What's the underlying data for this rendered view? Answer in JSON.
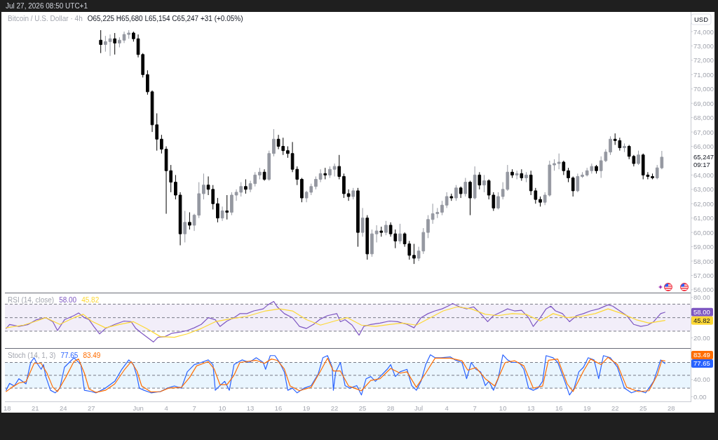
{
  "chart_data": [
    {
      "type": "candlestick",
      "title": "Bitcoin / U.S. Dollar · 4h",
      "subtitle": "O65,225 H65,680 L65,154 C65,247 +31 (+0.05%)",
      "ylabel": "USD",
      "x": [
        "2026-05-28T00:00",
        "2026-05-28T12:00",
        "2026-05-29T00:00",
        "2026-05-29T12:00",
        "2026-05-30T00:00",
        "2026-05-30T12:00",
        "2026-05-31T00:00",
        "2026-05-31T12:00",
        "2026-06-01T00:00",
        "2026-06-01T12:00",
        "2026-06-02T00:00",
        "2026-06-02T12:00",
        "2026-06-03T00:00",
        "2026-06-03T12:00",
        "2026-06-04T00:00",
        "2026-06-04T12:00",
        "2026-06-05T00:00",
        "2026-06-05T12:00",
        "2026-06-06T00:00",
        "2026-06-06T12:00",
        "2026-06-07T00:00",
        "2026-06-07T12:00",
        "2026-06-08T00:00",
        "2026-06-08T12:00",
        "2026-06-09T00:00",
        "2026-06-09T12:00",
        "2026-06-10T00:00",
        "2026-06-10T12:00",
        "2026-06-11T00:00",
        "2026-06-11T12:00",
        "2026-06-12T00:00",
        "2026-06-12T12:00",
        "2026-06-13T00:00",
        "2026-06-13T12:00",
        "2026-06-14T00:00",
        "2026-06-14T12:00",
        "2026-06-15T00:00",
        "2026-06-15T12:00",
        "2026-06-16T00:00",
        "2026-06-16T12:00",
        "2026-06-17T00:00",
        "2026-06-17T12:00",
        "2026-06-18T00:00",
        "2026-06-18T12:00",
        "2026-06-19T00:00",
        "2026-06-19T12:00",
        "2026-06-20T00:00",
        "2026-06-20T12:00",
        "2026-06-21T00:00",
        "2026-06-21T12:00",
        "2026-06-22T00:00",
        "2026-06-22T12:00",
        "2026-06-23T00:00",
        "2026-06-23T12:00",
        "2026-06-24T00:00",
        "2026-06-24T12:00",
        "2026-06-25T00:00",
        "2026-06-25T12:00",
        "2026-06-26T00:00",
        "2026-06-26T12:00",
        "2026-06-27T00:00",
        "2026-06-27T12:00",
        "2026-06-28T00:00",
        "2026-06-28T12:00",
        "2026-06-29T00:00",
        "2026-06-29T12:00",
        "2026-06-30T00:00",
        "2026-06-30T12:00",
        "2026-07-01T00:00",
        "2026-07-01T12:00",
        "2026-07-02T00:00",
        "2026-07-02T12:00",
        "2026-07-03T00:00",
        "2026-07-03T12:00",
        "2026-07-04T00:00",
        "2026-07-04T12:00",
        "2026-07-05T00:00",
        "2026-07-05T12:00",
        "2026-07-06T00:00",
        "2026-07-06T12:00",
        "2026-07-07T00:00",
        "2026-07-07T12:00",
        "2026-07-08T00:00",
        "2026-07-08T12:00",
        "2026-07-09T00:00",
        "2026-07-09T12:00",
        "2026-07-10T00:00",
        "2026-07-10T12:00",
        "2026-07-11T00:00",
        "2026-07-11T12:00",
        "2026-07-12T00:00",
        "2026-07-12T12:00",
        "2026-07-13T00:00",
        "2026-07-13T12:00",
        "2026-07-14T00:00",
        "2026-07-14T12:00",
        "2026-07-15T00:00",
        "2026-07-15T12:00",
        "2026-07-16T00:00",
        "2026-07-16T12:00",
        "2026-07-17T00:00",
        "2026-07-17T12:00",
        "2026-07-18T00:00",
        "2026-07-18T12:00",
        "2026-07-19T00:00",
        "2026-07-19T12:00",
        "2026-07-20T00:00",
        "2026-07-20T12:00",
        "2026-07-21T00:00",
        "2026-07-21T12:00",
        "2026-07-22T00:00",
        "2026-07-22T12:00",
        "2026-07-23T00:00",
        "2026-07-23T12:00",
        "2026-07-24T00:00",
        "2026-07-24T12:00",
        "2026-07-25T00:00",
        "2026-07-25T12:00",
        "2026-07-26T00:00",
        "2026-07-26T12:00",
        "2026-07-27T00:00"
      ],
      "ohlc": [
        [
          73400,
          74100,
          72500,
          73100
        ],
        [
          73100,
          73700,
          72600,
          73300
        ],
        [
          73300,
          73800,
          72300,
          73500
        ],
        [
          73500,
          73900,
          72400,
          73200
        ],
        [
          73200,
          73600,
          72900,
          73400
        ],
        [
          73400,
          74000,
          73200,
          73800
        ],
        [
          73800,
          74100,
          73500,
          73900
        ],
        [
          73900,
          74000,
          73300,
          73500
        ],
        [
          73500,
          73800,
          72200,
          72400
        ],
        [
          72400,
          72500,
          70800,
          71000
        ],
        [
          71000,
          71300,
          69600,
          69800
        ],
        [
          69800,
          69900,
          67000,
          67500
        ],
        [
          67500,
          68300,
          65700,
          66500
        ],
        [
          66500,
          66800,
          65500,
          65800
        ],
        [
          65800,
          66000,
          61300,
          64300
        ],
        [
          64300,
          64700,
          62800,
          63500
        ],
        [
          63500,
          64000,
          62300,
          62600
        ],
        [
          62600,
          62800,
          59100,
          59900
        ],
        [
          59900,
          61500,
          59300,
          60700
        ],
        [
          60700,
          61400,
          60200,
          60500
        ],
        [
          60500,
          61300,
          60100,
          61200
        ],
        [
          61200,
          63500,
          61000,
          62700
        ],
        [
          62700,
          64100,
          62300,
          63300
        ],
        [
          63300,
          63900,
          62600,
          63000
        ],
        [
          63000,
          63300,
          61600,
          62000
        ],
        [
          62000,
          62400,
          60700,
          61000
        ],
        [
          61000,
          61800,
          60800,
          61500
        ],
        [
          61500,
          62600,
          60900,
          61400
        ],
        [
          61400,
          62800,
          61200,
          62600
        ],
        [
          62600,
          63000,
          62200,
          62800
        ],
        [
          62800,
          63500,
          62500,
          63200
        ],
        [
          63200,
          63700,
          62700,
          63000
        ],
        [
          63000,
          63600,
          62800,
          63400
        ],
        [
          63400,
          64200,
          63200,
          64000
        ],
        [
          64000,
          64500,
          63700,
          64200
        ],
        [
          64200,
          64400,
          63600,
          63700
        ],
        [
          63700,
          65700,
          63600,
          65500
        ],
        [
          65500,
          67200,
          65300,
          66500
        ],
        [
          66500,
          66800,
          65800,
          66000
        ],
        [
          66000,
          66600,
          65400,
          65700
        ],
        [
          65700,
          66000,
          65200,
          65500
        ],
        [
          65500,
          66300,
          64200,
          64400
        ],
        [
          64400,
          64600,
          63300,
          63700
        ],
        [
          63700,
          63800,
          62100,
          62400
        ],
        [
          62400,
          62900,
          62100,
          62800
        ],
        [
          62800,
          63400,
          62600,
          63200
        ],
        [
          63200,
          63900,
          63000,
          63700
        ],
        [
          63700,
          64400,
          63500,
          64100
        ],
        [
          64100,
          64500,
          63700,
          64000
        ],
        [
          64000,
          64600,
          63800,
          64400
        ],
        [
          64400,
          64800,
          63900,
          64600
        ],
        [
          64600,
          65400,
          63700,
          63900
        ],
        [
          63900,
          64100,
          62400,
          62700
        ],
        [
          62700,
          63000,
          62200,
          62500
        ],
        [
          62500,
          63100,
          62300,
          62900
        ],
        [
          62900,
          63100,
          59000,
          60000
        ],
        [
          60000,
          61700,
          59700,
          61000
        ],
        [
          61000,
          61200,
          58100,
          58500
        ],
        [
          58500,
          60200,
          58300,
          59900
        ],
        [
          59900,
          60500,
          59300,
          60100
        ],
        [
          60100,
          60400,
          59700,
          60000
        ],
        [
          60000,
          60800,
          59800,
          60500
        ],
        [
          60500,
          60700,
          59700,
          59900
        ],
        [
          59900,
          60200,
          58900,
          59400
        ],
        [
          59400,
          60600,
          59200,
          59900
        ],
        [
          59900,
          60000,
          59000,
          59200
        ],
        [
          59200,
          59400,
          58100,
          58400
        ],
        [
          58400,
          59200,
          57800,
          58200
        ],
        [
          58200,
          59000,
          58000,
          58700
        ],
        [
          58700,
          60300,
          58500,
          60000
        ],
        [
          60000,
          61200,
          59600,
          60900
        ],
        [
          60900,
          62000,
          60600,
          61300
        ],
        [
          61300,
          61700,
          61000,
          61400
        ],
        [
          61400,
          62200,
          61200,
          61900
        ],
        [
          61900,
          62800,
          61700,
          62500
        ],
        [
          62500,
          62700,
          62200,
          62400
        ],
        [
          62400,
          63300,
          62200,
          63100
        ],
        [
          63100,
          63200,
          62400,
          62700
        ],
        [
          62700,
          63800,
          62500,
          63500
        ],
        [
          63500,
          63600,
          61200,
          62400
        ],
        [
          62400,
          64600,
          62300,
          64000
        ],
        [
          64000,
          64200,
          63000,
          63300
        ],
        [
          63300,
          64000,
          62800,
          63600
        ],
        [
          63600,
          63700,
          62300,
          62600
        ],
        [
          62600,
          62800,
          61500,
          61700
        ],
        [
          61700,
          62800,
          61600,
          62500
        ],
        [
          62500,
          63500,
          62300,
          63000
        ],
        [
          63000,
          64700,
          62900,
          64200
        ],
        [
          64200,
          64400,
          63800,
          64000
        ],
        [
          64000,
          64300,
          63700,
          64100
        ],
        [
          64100,
          64400,
          63600,
          63800
        ],
        [
          63800,
          64200,
          63500,
          64000
        ],
        [
          64000,
          64300,
          62600,
          62900
        ],
        [
          62900,
          63100,
          62000,
          62300
        ],
        [
          62300,
          62500,
          61800,
          62100
        ],
        [
          62100,
          62800,
          61900,
          62600
        ],
        [
          62600,
          65000,
          62500,
          64700
        ],
        [
          64700,
          65100,
          64300,
          64800
        ],
        [
          64800,
          65500,
          64400,
          64900
        ],
        [
          64900,
          65000,
          64000,
          64300
        ],
        [
          64300,
          64500,
          63500,
          63800
        ],
        [
          63800,
          63900,
          62500,
          62900
        ],
        [
          62900,
          64100,
          62800,
          63900
        ],
        [
          63900,
          64200,
          63800,
          64000
        ],
        [
          64000,
          64500,
          63900,
          64300
        ],
        [
          64300,
          64800,
          64100,
          64600
        ],
        [
          64600,
          64700,
          64100,
          64300
        ],
        [
          64300,
          65300,
          63800,
          65000
        ],
        [
          65000,
          65800,
          64900,
          65600
        ],
        [
          65600,
          66700,
          65400,
          66500
        ],
        [
          66500,
          66900,
          66100,
          66400
        ],
        [
          66400,
          66600,
          65700,
          65900
        ],
        [
          65900,
          66200,
          65600,
          66000
        ],
        [
          66000,
          66100,
          65100,
          65300
        ],
        [
          65300,
          65400,
          64600,
          64800
        ],
        [
          64800,
          65700,
          64700,
          65400
        ],
        [
          65400,
          65500,
          63700,
          64000
        ],
        [
          64000,
          64200,
          63700,
          63900
        ],
        [
          63900,
          64100,
          63700,
          63800
        ],
        [
          63800,
          64700,
          63700,
          64500
        ],
        [
          64500,
          65680,
          64400,
          65247
        ]
      ],
      "colors": [
        "#000000",
        "#9598a1",
        "#9598a1",
        "#000000",
        "#9598a1",
        "#9598a1",
        "#9598a1",
        "#000000",
        "#000000",
        "#000000",
        "#000000",
        "#000000",
        "#000000",
        "#000000",
        "#000000",
        "#000000",
        "#000000",
        "#000000",
        "#9598a1",
        "#000000",
        "#9598a1",
        "#9598a1",
        "#9598a1",
        "#000000",
        "#000000",
        "#000000",
        "#9598a1",
        "#000000",
        "#9598a1",
        "#9598a1",
        "#9598a1",
        "#000000",
        "#9598a1",
        "#9598a1",
        "#9598a1",
        "#000000",
        "#9598a1",
        "#9598a1",
        "#000000",
        "#000000",
        "#000000",
        "#000000",
        "#000000",
        "#000000",
        "#9598a1",
        "#9598a1",
        "#9598a1",
        "#9598a1",
        "#000000",
        "#9598a1",
        "#9598a1",
        "#000000",
        "#000000",
        "#000000",
        "#9598a1",
        "#000000",
        "#9598a1",
        "#000000",
        "#9598a1",
        "#9598a1",
        "#000000",
        "#9598a1",
        "#000000",
        "#000000",
        "#9598a1",
        "#000000",
        "#000000",
        "#000000",
        "#9598a1",
        "#9598a1",
        "#9598a1",
        "#9598a1",
        "#9598a1",
        "#9598a1",
        "#9598a1",
        "#000000",
        "#9598a1",
        "#000000",
        "#9598a1",
        "#000000",
        "#9598a1",
        "#000000",
        "#9598a1",
        "#000000",
        "#000000",
        "#9598a1",
        "#9598a1",
        "#9598a1",
        "#000000",
        "#9598a1",
        "#000000",
        "#9598a1",
        "#000000",
        "#000000",
        "#000000",
        "#9598a1",
        "#9598a1",
        "#9598a1",
        "#9598a1",
        "#000000",
        "#000000",
        "#000000",
        "#9598a1",
        "#9598a1",
        "#9598a1",
        "#9598a1",
        "#000000",
        "#9598a1",
        "#9598a1",
        "#9598a1",
        "#000000",
        "#000000",
        "#9598a1",
        "#000000",
        "#000000",
        "#9598a1",
        "#000000",
        "#000000",
        "#000000",
        "#9598a1",
        "#9598a1"
      ],
      "xlim": [
        "2026-05-17T18:00",
        "2026-07-30T02:00"
      ],
      "ylim": [
        55800,
        75370
      ],
      "yticks": [
        {
          "value": 56000,
          "label": "56,000"
        },
        {
          "value": 57000,
          "label": "57,000"
        },
        {
          "value": 58000,
          "label": "58,000"
        },
        {
          "value": 59000,
          "label": "59,000"
        },
        {
          "value": 60000,
          "label": "60,000"
        },
        {
          "value": 61000,
          "label": "61,000"
        },
        {
          "value": 62000,
          "label": "62,000"
        },
        {
          "value": 63000,
          "label": "63,000"
        },
        {
          "value": 64000,
          "label": "64,000"
        },
        {
          "value": 66000,
          "label": "66,000"
        },
        {
          "value": 67000,
          "label": "67,000"
        },
        {
          "value": 68000,
          "label": "68,000"
        },
        {
          "value": 69000,
          "label": "69,000"
        },
        {
          "value": 70000,
          "label": "70,000"
        },
        {
          "value": 71000,
          "label": "71,000"
        },
        {
          "value": 72000,
          "label": "72,000"
        },
        {
          "value": 73000,
          "label": "73,000"
        },
        {
          "value": 74000,
          "label": "74,000"
        }
      ],
      "tick_labels": "y",
      "annotations": [
        "Jul 27, 2026 08:50 UTC+1",
        "65,247",
        "09:17"
      ]
    },
    {
      "type": "line",
      "title": "RSI (14, close)",
      "xlim": [
        "2026-05-17T18:00",
        "2026-07-30T02:00"
      ],
      "ylim": [
        5,
        86
      ],
      "yticks": [
        {
          "value": 80,
          "label": "80.00"
        },
        {
          "value": 20,
          "label": "20.00"
        }
      ],
      "tick_labels": "y",
      "ref_lines": [
        {
          "axis": "y",
          "value": 70,
          "color": "#787b86",
          "line_style": "dashed"
        },
        {
          "axis": "y",
          "value": 50,
          "color": "#787b86",
          "line_style": "dashed"
        },
        {
          "axis": "y",
          "value": 30,
          "color": "#787b86",
          "line_style": "dashed"
        }
      ],
      "bands": [
        {
          "axis": "y",
          "from": 30,
          "to": 70,
          "color": "#f2eef9"
        }
      ],
      "annotations": [
        "58.00",
        "45.82"
      ],
      "series": [
        {
          "color": "#7e57c2",
          "x": [
            "2026-05-17T21:00",
            "2026-05-18T06:00",
            "2026-05-19T06:00",
            "2026-05-20T06:00",
            "2026-05-21T03:00",
            "2026-05-22T03:00",
            "2026-05-22T21:00",
            "2026-05-23T09:00",
            "2026-05-24T03:00",
            "2026-05-25T03:00",
            "2026-05-25T15:00",
            "2026-05-26T06:00",
            "2026-05-26T18:00",
            "2026-05-27T06:00",
            "2026-05-27T21:00",
            "2026-05-28T12:00",
            "2026-05-29T12:00",
            "2026-05-30T12:00",
            "2026-05-31T06:00",
            "2026-05-31T18:00",
            "2026-06-01T09:00",
            "2026-06-02T15:00",
            "2026-06-03T03:00",
            "2026-06-03T21:00",
            "2026-06-04T15:00",
            "2026-06-05T15:00",
            "2026-06-06T06:00",
            "2026-06-07T00:00",
            "2026-06-07T18:00",
            "2026-06-08T12:00",
            "2026-06-09T06:00",
            "2026-06-09T18:00",
            "2026-06-10T12:00",
            "2026-06-11T06:00",
            "2026-06-11T21:00",
            "2026-06-12T15:00",
            "2026-06-13T09:00",
            "2026-06-14T09:00",
            "2026-06-14T21:00",
            "2026-06-15T12:00",
            "2026-06-15T21:00",
            "2026-06-16T15:00",
            "2026-06-17T12:00",
            "2026-06-18T06:00",
            "2026-06-19T00:00",
            "2026-06-19T18:00",
            "2026-06-20T12:00",
            "2026-06-21T06:00",
            "2026-06-22T06:00",
            "2026-06-22T15:00",
            "2026-06-23T03:00",
            "2026-06-23T21:00",
            "2026-06-24T15:00",
            "2026-06-25T03:00",
            "2026-06-25T21:00",
            "2026-06-26T21:00",
            "2026-06-27T21:00",
            "2026-06-28T18:00",
            "2026-06-29T18:00",
            "2026-06-30T12:00",
            "2026-07-01T06:00",
            "2026-07-02T00:00",
            "2026-07-02T18:00",
            "2026-07-03T12:00",
            "2026-07-04T03:00",
            "2026-07-04T15:00",
            "2026-07-05T09:00",
            "2026-07-06T03:00",
            "2026-07-06T21:00",
            "2026-07-07T15:00",
            "2026-07-08T09:00",
            "2026-07-09T00:00",
            "2026-07-09T18:00",
            "2026-07-10T12:00",
            "2026-07-11T06:00",
            "2026-07-12T00:00",
            "2026-07-12T18:00",
            "2026-07-13T06:00",
            "2026-07-14T00:00",
            "2026-07-14T15:00",
            "2026-07-15T03:00",
            "2026-07-15T15:00",
            "2026-07-16T09:00",
            "2026-07-17T03:00",
            "2026-07-17T21:00",
            "2026-07-18T15:00",
            "2026-07-19T09:00",
            "2026-07-20T06:00",
            "2026-07-21T06:00",
            "2026-07-21T18:00",
            "2026-07-22T12:00",
            "2026-07-23T06:00",
            "2026-07-24T00:00",
            "2026-07-24T18:00",
            "2026-07-25T12:00",
            "2026-07-26T03:00",
            "2026-07-26T21:00",
            "2026-07-27T08:00"
          ],
          "values": [
            34,
            40,
            37,
            40,
            47,
            50,
            44,
            31,
            47,
            53,
            57,
            50,
            47,
            37,
            26,
            34,
            40,
            45,
            44,
            34,
            27,
            14,
            21,
            22,
            27,
            29,
            31,
            35,
            40,
            50,
            47,
            37,
            45,
            50,
            56,
            56,
            60,
            63,
            69,
            74,
            66,
            56,
            50,
            37,
            34,
            40,
            48,
            53,
            56,
            44,
            47,
            39,
            24,
            37,
            40,
            42,
            45,
            44,
            40,
            35,
            50,
            56,
            60,
            63,
            67,
            71,
            66,
            63,
            66,
            56,
            44,
            53,
            58,
            63,
            60,
            61,
            50,
            37,
            50,
            63,
            67,
            60,
            56,
            44,
            53,
            56,
            60,
            63,
            69,
            67,
            60,
            53,
            40,
            37,
            39,
            44,
            56,
            58
          ]
        },
        {
          "color": "#fdd835",
          "x": [
            "2026-05-17T21:00",
            "2026-05-19T18:00",
            "2026-05-21T03:00",
            "2026-05-22T03:00",
            "2026-05-23T15:00",
            "2026-05-25T03:00",
            "2026-05-26T03:00",
            "2026-05-27T00:00",
            "2026-05-28T12:00",
            "2026-05-30T00:00",
            "2026-05-31T12:00",
            "2026-06-01T21:00",
            "2026-06-03T09:00",
            "2026-06-04T21:00",
            "2026-06-06T06:00",
            "2026-06-07T18:00",
            "2026-06-09T06:00",
            "2026-06-10T18:00",
            "2026-06-12T15:00",
            "2026-06-14T15:00",
            "2026-06-16T03:00",
            "2026-06-17T12:00",
            "2026-06-19T00:00",
            "2026-06-20T12:00",
            "2026-06-22T00:00",
            "2026-06-23T09:00",
            "2026-06-24T21:00",
            "2026-06-26T09:00",
            "2026-06-27T21:00",
            "2026-06-29T06:00",
            "2026-06-30T18:00",
            "2026-07-02T06:00",
            "2026-07-03T15:00",
            "2026-07-05T03:00",
            "2026-07-06T15:00",
            "2026-07-08T03:00",
            "2026-07-09T12:00",
            "2026-07-11T00:00",
            "2026-07-12T12:00",
            "2026-07-14T00:00",
            "2026-07-15T09:00",
            "2026-07-16T21:00",
            "2026-07-18T09:00",
            "2026-07-19T21:00",
            "2026-07-21T06:00",
            "2026-07-22T18:00",
            "2026-07-24T06:00",
            "2026-07-25T15:00",
            "2026-07-27T08:00"
          ],
          "values": [
            35,
            39,
            45,
            50,
            40,
            50,
            55,
            45,
            35,
            40,
            44,
            34,
            22,
            21,
            26,
            34,
            44,
            48,
            52,
            60,
            63,
            60,
            47,
            39,
            45,
            50,
            39,
            37,
            40,
            42,
            39,
            50,
            60,
            66,
            63,
            55,
            53,
            56,
            55,
            45,
            56,
            50,
            52,
            56,
            63,
            56,
            47,
            42,
            45.82
          ]
        }
      ]
    },
    {
      "type": "line",
      "title": "Stoch (14, 1, 3)",
      "xlim": [
        "2026-05-17T18:00",
        "2026-07-30T02:00"
      ],
      "ylim": [
        -11,
        112
      ],
      "xticks": [
        {
          "value": "2026-05-18",
          "label": "18"
        },
        {
          "value": "2026-05-21",
          "label": "21"
        },
        {
          "value": "2026-05-24",
          "label": "24"
        },
        {
          "value": "2026-05-27",
          "label": "27"
        },
        {
          "value": "2026-06-01",
          "label": "Jun"
        },
        {
          "value": "2026-06-04",
          "label": "4"
        },
        {
          "value": "2026-06-07",
          "label": "7"
        },
        {
          "value": "2026-06-10",
          "label": "10"
        },
        {
          "value": "2026-06-13",
          "label": "13"
        },
        {
          "value": "2026-06-16",
          "label": "16"
        },
        {
          "value": "2026-06-19",
          "label": "19"
        },
        {
          "value": "2026-06-22",
          "label": "22"
        },
        {
          "value": "2026-06-25",
          "label": "25"
        },
        {
          "value": "2026-06-28",
          "label": "28"
        },
        {
          "value": "2026-07-01",
          "label": "Jul"
        },
        {
          "value": "2026-07-04",
          "label": "4"
        },
        {
          "value": "2026-07-07",
          "label": "7"
        },
        {
          "value": "2026-07-10",
          "label": "10"
        },
        {
          "value": "2026-07-13",
          "label": "13"
        },
        {
          "value": "2026-07-16",
          "label": "16"
        },
        {
          "value": "2026-07-19",
          "label": "19"
        },
        {
          "value": "2026-07-22",
          "label": "22"
        },
        {
          "value": "2026-07-25",
          "label": "25"
        },
        {
          "value": "2026-07-28",
          "label": "28"
        }
      ],
      "yticks": [
        {
          "value": 40,
          "label": "40.00"
        },
        {
          "value": 0,
          "label": "0.00"
        }
      ],
      "ref_lines": [
        {
          "axis": "y",
          "value": 80,
          "color": "#787b86",
          "line_style": "dashed"
        },
        {
          "axis": "y",
          "value": 50,
          "color": "#787b86",
          "line_style": "dashed"
        },
        {
          "axis": "y",
          "value": 20,
          "color": "#787b86",
          "line_style": "dashed"
        }
      ],
      "bands": [
        {
          "axis": "y",
          "from": 20,
          "to": 80,
          "color": "#e9f5fe"
        }
      ],
      "annotations": [
        "77.65",
        "83.49"
      ],
      "series": [
        {
          "color": "#2962ff",
          "x": [
            "2026-05-17T21:00",
            "2026-05-18T06:00",
            "2026-05-18T18:00",
            "2026-05-19T06:00",
            "2026-05-20T00:00",
            "2026-05-20T12:00",
            "2026-05-20T21:00",
            "2026-05-21T03:00",
            "2026-05-21T15:00",
            "2026-05-21T21:00",
            "2026-05-22T03:00",
            "2026-05-22T15:00",
            "2026-05-23T03:00",
            "2026-05-23T15:00",
            "2026-05-24T03:00",
            "2026-05-24T15:00",
            "2026-05-25T03:00",
            "2026-05-25T09:00",
            "2026-05-25T21:00",
            "2026-05-26T06:00",
            "2026-05-27T00:00",
            "2026-05-27T12:00",
            "2026-05-28T12:00",
            "2026-05-29T12:00",
            "2026-05-30T06:00",
            "2026-05-31T00:00",
            "2026-05-31T12:00",
            "2026-05-31T21:00",
            "2026-06-01T03:00",
            "2026-06-01T15:00",
            "2026-06-02T09:00",
            "2026-06-03T09:00",
            "2026-06-04T03:00",
            "2026-06-04T21:00",
            "2026-06-05T15:00",
            "2026-06-06T06:00",
            "2026-06-07T00:00",
            "2026-06-07T18:00",
            "2026-06-08T12:00",
            "2026-06-09T00:00",
            "2026-06-09T06:00",
            "2026-06-09T18:00",
            "2026-06-10T06:00",
            "2026-06-10T18:00",
            "2026-06-11T06:00",
            "2026-06-11T15:00",
            "2026-06-12T03:00",
            "2026-06-12T21:00",
            "2026-06-13T15:00",
            "2026-06-14T09:00",
            "2026-06-14T15:00",
            "2026-06-15T03:00",
            "2026-06-15T15:00",
            "2026-06-16T03:00",
            "2026-06-16T15:00",
            "2026-06-17T00:00",
            "2026-06-17T12:00",
            "2026-06-18T00:00",
            "2026-06-18T18:00",
            "2026-06-19T12:00",
            "2026-06-20T06:00",
            "2026-06-20T18:00",
            "2026-06-21T06:00",
            "2026-06-21T18:00",
            "2026-06-21T21:00",
            "2026-06-22T03:00",
            "2026-06-22T15:00",
            "2026-06-23T03:00",
            "2026-06-23T15:00",
            "2026-06-24T09:00",
            "2026-06-24T21:00",
            "2026-06-25T09:00",
            "2026-06-25T21:00",
            "2026-06-26T09:00",
            "2026-06-26T21:00",
            "2026-06-27T15:00",
            "2026-06-28T00:00",
            "2026-06-28T12:00",
            "2026-06-29T00:00",
            "2026-06-29T18:00",
            "2026-06-30T06:00",
            "2026-06-30T18:00",
            "2026-07-01T06:00",
            "2026-07-01T18:00",
            "2026-07-02T06:00",
            "2026-07-02T18:00",
            "2026-07-03T09:00",
            "2026-07-04T09:00",
            "2026-07-04T21:00",
            "2026-07-05T15:00",
            "2026-07-06T03:00",
            "2026-07-06T15:00",
            "2026-07-07T03:00",
            "2026-07-07T15:00",
            "2026-07-08T03:00",
            "2026-07-08T12:00",
            "2026-07-09T00:00",
            "2026-07-09T12:00",
            "2026-07-10T00:00",
            "2026-07-10T12:00",
            "2026-07-11T00:00",
            "2026-07-11T18:00",
            "2026-07-12T06:00",
            "2026-07-12T18:00",
            "2026-07-13T06:00",
            "2026-07-13T18:00",
            "2026-07-14T06:00",
            "2026-07-14T15:00",
            "2026-07-15T09:00",
            "2026-07-15T21:00",
            "2026-07-16T15:00",
            "2026-07-17T03:00",
            "2026-07-17T15:00",
            "2026-07-18T03:00",
            "2026-07-18T15:00",
            "2026-07-19T03:00",
            "2026-07-19T18:00",
            "2026-07-20T06:00",
            "2026-07-20T18:00",
            "2026-07-21T12:00",
            "2026-07-22T06:00",
            "2026-07-23T00:00",
            "2026-07-23T18:00",
            "2026-07-24T12:00",
            "2026-07-25T06:00",
            "2026-07-25T15:00",
            "2026-07-26T03:00",
            "2026-07-26T21:00",
            "2026-07-27T08:00"
          ],
          "values": [
            15,
            31,
            25,
            42,
            30,
            80,
            91,
            80,
            64,
            75,
            47,
            15,
            9,
            20,
            69,
            80,
            91,
            86,
            75,
            15,
            12,
            9,
            20,
            36,
            64,
            86,
            75,
            47,
            20,
            15,
            9,
            12,
            20,
            25,
            20,
            58,
            75,
            80,
            86,
            75,
            15,
            26,
            36,
            15,
            75,
            80,
            86,
            80,
            91,
            80,
            64,
            96,
            96,
            80,
            58,
            15,
            20,
            9,
            20,
            26,
            53,
            91,
            96,
            69,
            15,
            58,
            80,
            26,
            20,
            26,
            4,
            42,
            47,
            36,
            47,
            64,
            75,
            47,
            58,
            64,
            26,
            15,
            36,
            75,
            98,
            91,
            91,
            93,
            86,
            80,
            42,
            80,
            64,
            58,
            26,
            36,
            15,
            42,
            98,
            86,
            80,
            80,
            64,
            20,
            15,
            20,
            36,
            96,
            91,
            80,
            36,
            4,
            20,
            58,
            69,
            91,
            86,
            42,
            96,
            91,
            69,
            20,
            9,
            15,
            9,
            20,
            36,
            86,
            77.65
          ]
        },
        {
          "color": "#ff6d00",
          "x": [
            "2026-05-17T21:00",
            "2026-05-18T12:00",
            "2026-05-19T06:00",
            "2026-05-20T00:00",
            "2026-05-20T21:00",
            "2026-05-21T15:00",
            "2026-05-22T06:00",
            "2026-05-22T21:00",
            "2026-05-23T09:00",
            "2026-05-24T06:00",
            "2026-05-25T03:00",
            "2026-05-25T15:00",
            "2026-05-26T06:00",
            "2026-05-26T18:00",
            "2026-05-27T12:00",
            "2026-05-28T12:00",
            "2026-05-29T12:00",
            "2026-05-30T12:00",
            "2026-05-31T06:00",
            "2026-05-31T21:00",
            "2026-06-01T09:00",
            "2026-06-02T09:00",
            "2026-06-03T09:00",
            "2026-06-04T06:00",
            "2026-06-05T15:00",
            "2026-06-06T12:00",
            "2026-06-07T06:00",
            "2026-06-08T12:00",
            "2026-06-09T03:00",
            "2026-06-09T18:00",
            "2026-06-10T12:00",
            "2026-06-11T06:00",
            "2026-06-11T21:00",
            "2026-06-13T15:00",
            "2026-06-14T12:00",
            "2026-06-15T06:00",
            "2026-06-15T21:00",
            "2026-06-16T15:00",
            "2026-06-17T06:00",
            "2026-06-18T06:00",
            "2026-06-19T12:00",
            "2026-06-20T12:00",
            "2026-06-21T06:00",
            "2026-06-21T21:00",
            "2026-06-22T15:00",
            "2026-06-23T12:00",
            "2026-06-24T21:00",
            "2026-06-25T21:00",
            "2026-06-26T21:00",
            "2026-06-28T00:00",
            "2026-06-29T00:00",
            "2026-06-29T18:00",
            "2026-06-30T18:00",
            "2026-07-01T18:00",
            "2026-07-02T18:00",
            "2026-07-04T09:00",
            "2026-07-05T15:00",
            "2026-07-06T06:00",
            "2026-07-07T03:00",
            "2026-07-08T03:00",
            "2026-07-09T03:00",
            "2026-07-10T06:00",
            "2026-07-11T06:00",
            "2026-07-12T06:00",
            "2026-07-13T06:00",
            "2026-07-14T06:00",
            "2026-07-14T21:00",
            "2026-07-15T21:00",
            "2026-07-16T21:00",
            "2026-07-17T12:00",
            "2026-07-18T15:00",
            "2026-07-19T09:00",
            "2026-07-20T12:00",
            "2026-07-21T06:00",
            "2026-07-22T06:00",
            "2026-07-23T06:00",
            "2026-07-24T12:00",
            "2026-07-25T15:00",
            "2026-07-26T12:00",
            "2026-07-27T00:00",
            "2026-07-27T08:00"
          ],
          "values": [
            12,
            22,
            32,
            35,
            78,
            78,
            55,
            22,
            12,
            45,
            82,
            88,
            55,
            18,
            10,
            15,
            30,
            62,
            82,
            60,
            25,
            11,
            12,
            20,
            22,
            45,
            72,
            82,
            65,
            28,
            28,
            50,
            80,
            85,
            78,
            88,
            85,
            65,
            25,
            14,
            22,
            60,
            90,
            60,
            60,
            25,
            14,
            38,
            42,
            66,
            55,
            58,
            22,
            55,
            90,
            90,
            84,
            62,
            68,
            42,
            25,
            80,
            84,
            72,
            20,
            25,
            85,
            88,
            30,
            12,
            60,
            88,
            75,
            92,
            75,
            22,
            12,
            14,
            50,
            85,
            83.49
          ]
        }
      ]
    }
  ]
}
